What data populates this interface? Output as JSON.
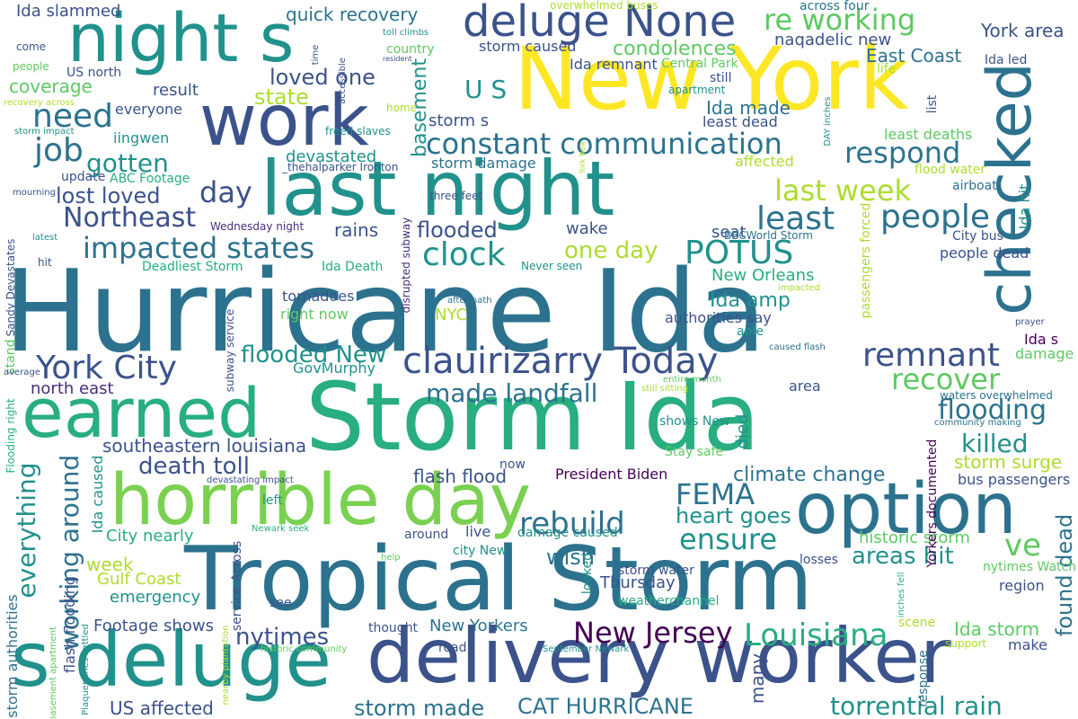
{
  "palette": {
    "background": "#ffffff",
    "a": "#3b528b",
    "b": "#2c728e",
    "c": "#21918c",
    "d": "#28ae80",
    "e": "#5ec962",
    "f": "#addc30",
    "g": "#fde725",
    "h": "#440154",
    "i": "#472d7b"
  },
  "words": [
    {
      "text": "Hurricane Ida",
      "color": "#2c728e"
    },
    {
      "text": "Storm Ida",
      "color": "#28ae80"
    },
    {
      "text": "New York",
      "color": "#fde725"
    },
    {
      "text": "Tropical Storm",
      "color": "#2c728e"
    },
    {
      "text": "last night",
      "color": "#21918c"
    },
    {
      "text": "night s",
      "color": "#21918c"
    },
    {
      "text": "work",
      "color": "#3b528b"
    },
    {
      "text": "checked",
      "color": "#2c728e"
    },
    {
      "text": "horrible day",
      "color": "#7ad151"
    },
    {
      "text": "earned",
      "color": "#28ae80"
    },
    {
      "text": "option",
      "color": "#2c728e"
    },
    {
      "text": "delivery worker",
      "color": "#3b528b"
    },
    {
      "text": "s deluge",
      "color": "#21918c"
    },
    {
      "text": "deluge None",
      "color": "#3b528b"
    },
    {
      "text": "re working",
      "color": "#5ec962"
    },
    {
      "text": "clauirizarry Today",
      "color": "#3b528b"
    },
    {
      "text": "constant communication",
      "color": "#2c728e"
    },
    {
      "text": "impacted states",
      "color": "#2c728e"
    },
    {
      "text": "York City",
      "color": "#3b528b"
    },
    {
      "text": "Northeast",
      "color": "#3b528b"
    },
    {
      "text": "lost loved",
      "color": "#3b528b"
    },
    {
      "text": "gotten",
      "color": "#21918c"
    },
    {
      "text": "job",
      "color": "#2c728e"
    },
    {
      "text": "need",
      "color": "#2c728e"
    },
    {
      "text": "day",
      "color": "#3b528b"
    },
    {
      "text": "clock",
      "color": "#21918c"
    },
    {
      "text": "POTUS",
      "color": "#21918c"
    },
    {
      "text": "one day",
      "color": "#addc30"
    },
    {
      "text": "last week",
      "color": "#addc30"
    },
    {
      "text": "least",
      "color": "#2c728e"
    },
    {
      "text": "people",
      "color": "#2c728e"
    },
    {
      "text": "respond",
      "color": "#2c728e"
    },
    {
      "text": "remnant",
      "color": "#3b528b"
    },
    {
      "text": "recover",
      "color": "#5ec962"
    },
    {
      "text": "flooding",
      "color": "#2c728e"
    },
    {
      "text": "killed",
      "color": "#21918c"
    },
    {
      "text": "made landfall",
      "color": "#2c728e"
    },
    {
      "text": "flooded New",
      "color": "#21918c"
    },
    {
      "text": "FEMA",
      "color": "#2c728e"
    },
    {
      "text": "rebuild",
      "color": "#2c728e"
    },
    {
      "text": "ensure",
      "color": "#21918c"
    },
    {
      "text": "heart goes",
      "color": "#21918c"
    },
    {
      "text": "ve",
      "color": "#5ec962"
    },
    {
      "text": "areas hit",
      "color": "#21918c"
    },
    {
      "text": "Louisiana",
      "color": "#28ae80"
    },
    {
      "text": "New Jersey",
      "color": "#440154"
    },
    {
      "text": "nytimes",
      "color": "#3b528b"
    },
    {
      "text": "CAT HURRICANE",
      "color": "#2c728e"
    },
    {
      "text": "storm made",
      "color": "#2c728e"
    },
    {
      "text": "torrential rain",
      "color": "#21918c"
    },
    {
      "text": "US affected",
      "color": "#3b528b"
    },
    {
      "text": "everything",
      "color": "#21918c"
    },
    {
      "text": "working around",
      "color": "#2c728e"
    },
    {
      "text": "death toll",
      "color": "#3b528b"
    },
    {
      "text": "southeastern louisiana",
      "color": "#3b528b"
    },
    {
      "text": "north east",
      "color": "#472d7b"
    },
    {
      "text": "flash flood",
      "color": "#3b528b"
    },
    {
      "text": "President Biden",
      "color": "#440154"
    },
    {
      "text": "climate change",
      "color": "#2c728e"
    },
    {
      "text": "storm surge",
      "color": "#addc30"
    },
    {
      "text": "bus passengers",
      "color": "#3b528b"
    },
    {
      "text": "historic storm",
      "color": "#5ec962"
    },
    {
      "text": "found dead",
      "color": "#2c728e"
    },
    {
      "text": "Ida storm",
      "color": "#5ec962"
    },
    {
      "text": "condolences",
      "color": "#5ec962"
    },
    {
      "text": "naqadelic new",
      "color": "#3b528b"
    },
    {
      "text": "East Coast",
      "color": "#2c728e"
    },
    {
      "text": "York area",
      "color": "#3b528b"
    },
    {
      "text": "quick recovery",
      "color": "#2c728e"
    },
    {
      "text": "loved one",
      "color": "#3b528b"
    },
    {
      "text": "state",
      "color": "#addc30"
    },
    {
      "text": "U S",
      "color": "#21918c"
    },
    {
      "text": "basement",
      "color": "#21918c"
    },
    {
      "text": "storm s",
      "color": "#3b528b"
    },
    {
      "text": "Ida made",
      "color": "#2c728e"
    },
    {
      "text": "Ida remnant",
      "color": "#3b528b"
    },
    {
      "text": "storm caused",
      "color": "#3b528b"
    },
    {
      "text": "Ida slammed",
      "color": "#3b528b"
    },
    {
      "text": "coverage",
      "color": "#5ec962"
    },
    {
      "text": "result",
      "color": "#3b528b"
    },
    {
      "text": "everyone",
      "color": "#3b528b"
    },
    {
      "text": "storm damage",
      "color": "#2c728e"
    },
    {
      "text": "devastated",
      "color": "#21918c"
    },
    {
      "text": "rains",
      "color": "#3b528b"
    },
    {
      "text": "flooded",
      "color": "#3b528b"
    },
    {
      "text": "wake",
      "color": "#3b528b"
    },
    {
      "text": "Ida amp",
      "color": "#21918c"
    },
    {
      "text": "New Orleans",
      "color": "#28ae80"
    },
    {
      "text": "NYC",
      "color": "#addc30"
    },
    {
      "text": "GovMurphy",
      "color": "#21918c"
    },
    {
      "text": "Ida Death",
      "color": "#28ae80"
    },
    {
      "text": "Deadliest Storm",
      "color": "#28ae80"
    },
    {
      "text": "tornadoes",
      "color": "#3b528b"
    },
    {
      "text": "right now",
      "color": "#5ec962"
    },
    {
      "text": "authorities say",
      "color": "#3b528b"
    },
    {
      "text": "able",
      "color": "#21918c"
    },
    {
      "text": "Ida s",
      "color": "#440154"
    },
    {
      "text": "damage",
      "color": "#5ec962"
    },
    {
      "text": "area",
      "color": "#3b528b"
    },
    {
      "text": "Ida hit",
      "color": "#21918c"
    },
    {
      "text": "affected",
      "color": "#addc30"
    },
    {
      "text": "City bus",
      "color": "#3b528b"
    },
    {
      "text": "people dead",
      "color": "#3b528b"
    },
    {
      "text": "flood water",
      "color": "#addc30"
    },
    {
      "text": "airboat",
      "color": "#2c728e"
    },
    {
      "text": "least deaths",
      "color": "#5ec962"
    },
    {
      "text": "least dead",
      "color": "#3b528b"
    },
    {
      "text": "still",
      "color": "#3b528b"
    },
    {
      "text": "apartment",
      "color": "#21918c"
    },
    {
      "text": "Central Park",
      "color": "#5ec962"
    },
    {
      "text": "across four",
      "color": "#2c728e"
    },
    {
      "text": "Ida led",
      "color": "#3b528b"
    },
    {
      "text": "life",
      "color": "#addc30"
    },
    {
      "text": "list",
      "color": "#3b528b"
    },
    {
      "text": "seat",
      "color": "#3b528b"
    },
    {
      "text": "BBCWorld Storm",
      "color": "#2c728e"
    },
    {
      "text": "waters overwhelmed",
      "color": "#2c728e"
    },
    {
      "text": "community making",
      "color": "#2c728e"
    },
    {
      "text": "Stay safe",
      "color": "#5ec962"
    },
    {
      "text": "shows New",
      "color": "#21918c"
    },
    {
      "text": "died",
      "color": "#21918c"
    },
    {
      "text": "now",
      "color": "#3b528b"
    },
    {
      "text": "Gulf Coast",
      "color": "#addc30"
    },
    {
      "text": "emergency",
      "color": "#21918c"
    },
    {
      "text": "week",
      "color": "#addc30"
    },
    {
      "text": "City nearly",
      "color": "#28ae80"
    },
    {
      "text": "Footage shows",
      "color": "#3b528b"
    },
    {
      "text": "wish",
      "color": "#2c728e"
    },
    {
      "text": "live",
      "color": "#3b528b"
    },
    {
      "text": "damage caused",
      "color": "#21918c"
    },
    {
      "text": "Thursday",
      "color": "#3b528b"
    },
    {
      "text": "storm water",
      "color": "#3b528b"
    },
    {
      "text": "weatherchannel",
      "color": "#28ae80"
    },
    {
      "text": "New Yorkers",
      "color": "#2c728e"
    },
    {
      "text": "many",
      "color": "#3b528b"
    },
    {
      "text": "losses",
      "color": "#3b528b"
    },
    {
      "text": "region",
      "color": "#3b528b"
    },
    {
      "text": "nytimes Watch",
      "color": "#5ec962"
    },
    {
      "text": "make",
      "color": "#3b528b"
    },
    {
      "text": "support",
      "color": "#addc30"
    },
    {
      "text": "scene",
      "color": "#addc30"
    },
    {
      "text": "response",
      "color": "#2c728e"
    },
    {
      "text": "iingwen",
      "color": "#21918c"
    },
    {
      "text": "ABC Footage",
      "color": "#28ae80"
    },
    {
      "text": "update",
      "color": "#3b528b"
    },
    {
      "text": "US north",
      "color": "#3b528b"
    },
    {
      "text": "come",
      "color": "#3b528b"
    },
    {
      "text": "people",
      "color": "#5ec962"
    },
    {
      "text": "Sandy Devastates",
      "color": "#3b528b"
    },
    {
      "text": "hit",
      "color": "#3b528b"
    },
    {
      "text": "stand",
      "color": "#5ec962"
    },
    {
      "text": "Ida caused",
      "color": "#21918c"
    },
    {
      "text": "flash flooding",
      "color": "#3b528b"
    },
    {
      "text": "Flooding right",
      "color": "#28ae80"
    },
    {
      "text": "storm authorities",
      "color": "#2c728e"
    },
    {
      "text": "Wednesday night",
      "color": "#472d7b"
    },
    {
      "text": "_thehalparker Ironton",
      "color": "#3b528b"
    },
    {
      "text": "three feet",
      "color": "#3b528b"
    },
    {
      "text": "disrupted subway",
      "color": "#472d7b"
    },
    {
      "text": "Never seen",
      "color": "#21918c"
    },
    {
      "text": "aftermath",
      "color": "#2c728e"
    },
    {
      "text": "subway service",
      "color": "#3b528b"
    },
    {
      "text": "freed slaves",
      "color": "#21918c"
    },
    {
      "text": "home",
      "color": "#addc30"
    },
    {
      "text": "country",
      "color": "#5ec962"
    },
    {
      "text": "toll climbs",
      "color": "#21918c"
    },
    {
      "text": "resident",
      "color": "#3b528b"
    },
    {
      "text": "overwhelmed buses",
      "color": "#addc30"
    },
    {
      "text": "accessible",
      "color": "#3b528b"
    },
    {
      "text": "time",
      "color": "#3b528b"
    },
    {
      "text": "passengers forced",
      "color": "#addc30"
    },
    {
      "text": "around",
      "color": "#3b528b"
    },
    {
      "text": "city New",
      "color": "#21918c"
    },
    {
      "text": "help",
      "color": "#5ec962"
    },
    {
      "text": "road",
      "color": "#3b528b"
    },
    {
      "text": "looked",
      "color": "#21918c"
    },
    {
      "text": "thought",
      "color": "#3b528b"
    },
    {
      "text": "see",
      "color": "#3b528b"
    },
    {
      "text": "left",
      "color": "#21918c"
    },
    {
      "text": "devastating impact",
      "color": "#3b528b"
    },
    {
      "text": "Newark seek",
      "color": "#28ae80"
    },
    {
      "text": "service Across",
      "color": "#3b528b"
    },
    {
      "text": "historic community",
      "color": "#5ec962"
    },
    {
      "text": "September Newark",
      "color": "#21918c"
    },
    {
      "text": "nearby plantation",
      "color": "#addc30"
    },
    {
      "text": "Yorkers documented",
      "color": "#440154"
    },
    {
      "text": "prayer",
      "color": "#3b528b"
    },
    {
      "text": "entire month",
      "color": "#5ec962"
    },
    {
      "text": "still sitting",
      "color": "#addc30"
    },
    {
      "text": "caused flash",
      "color": "#2c728e"
    },
    {
      "text": "impacted",
      "color": "#addc30"
    },
    {
      "text": "DAY inches",
      "color": "#21918c"
    },
    {
      "text": "inches fell",
      "color": "#28ae80"
    },
    {
      "text": "recovery across",
      "color": "#addc30"
    },
    {
      "text": "storm impact",
      "color": "#21918c"
    },
    {
      "text": "mourning",
      "color": "#3b528b"
    },
    {
      "text": "latest",
      "color": "#21918c"
    },
    {
      "text": "average",
      "color": "#3b528b"
    },
    {
      "text": "basement apartment",
      "color": "#5ec962"
    },
    {
      "text": "Plaquemines settled",
      "color": "#21918c"
    },
    {
      "text": "York New",
      "color": "#addc30"
    }
  ]
}
